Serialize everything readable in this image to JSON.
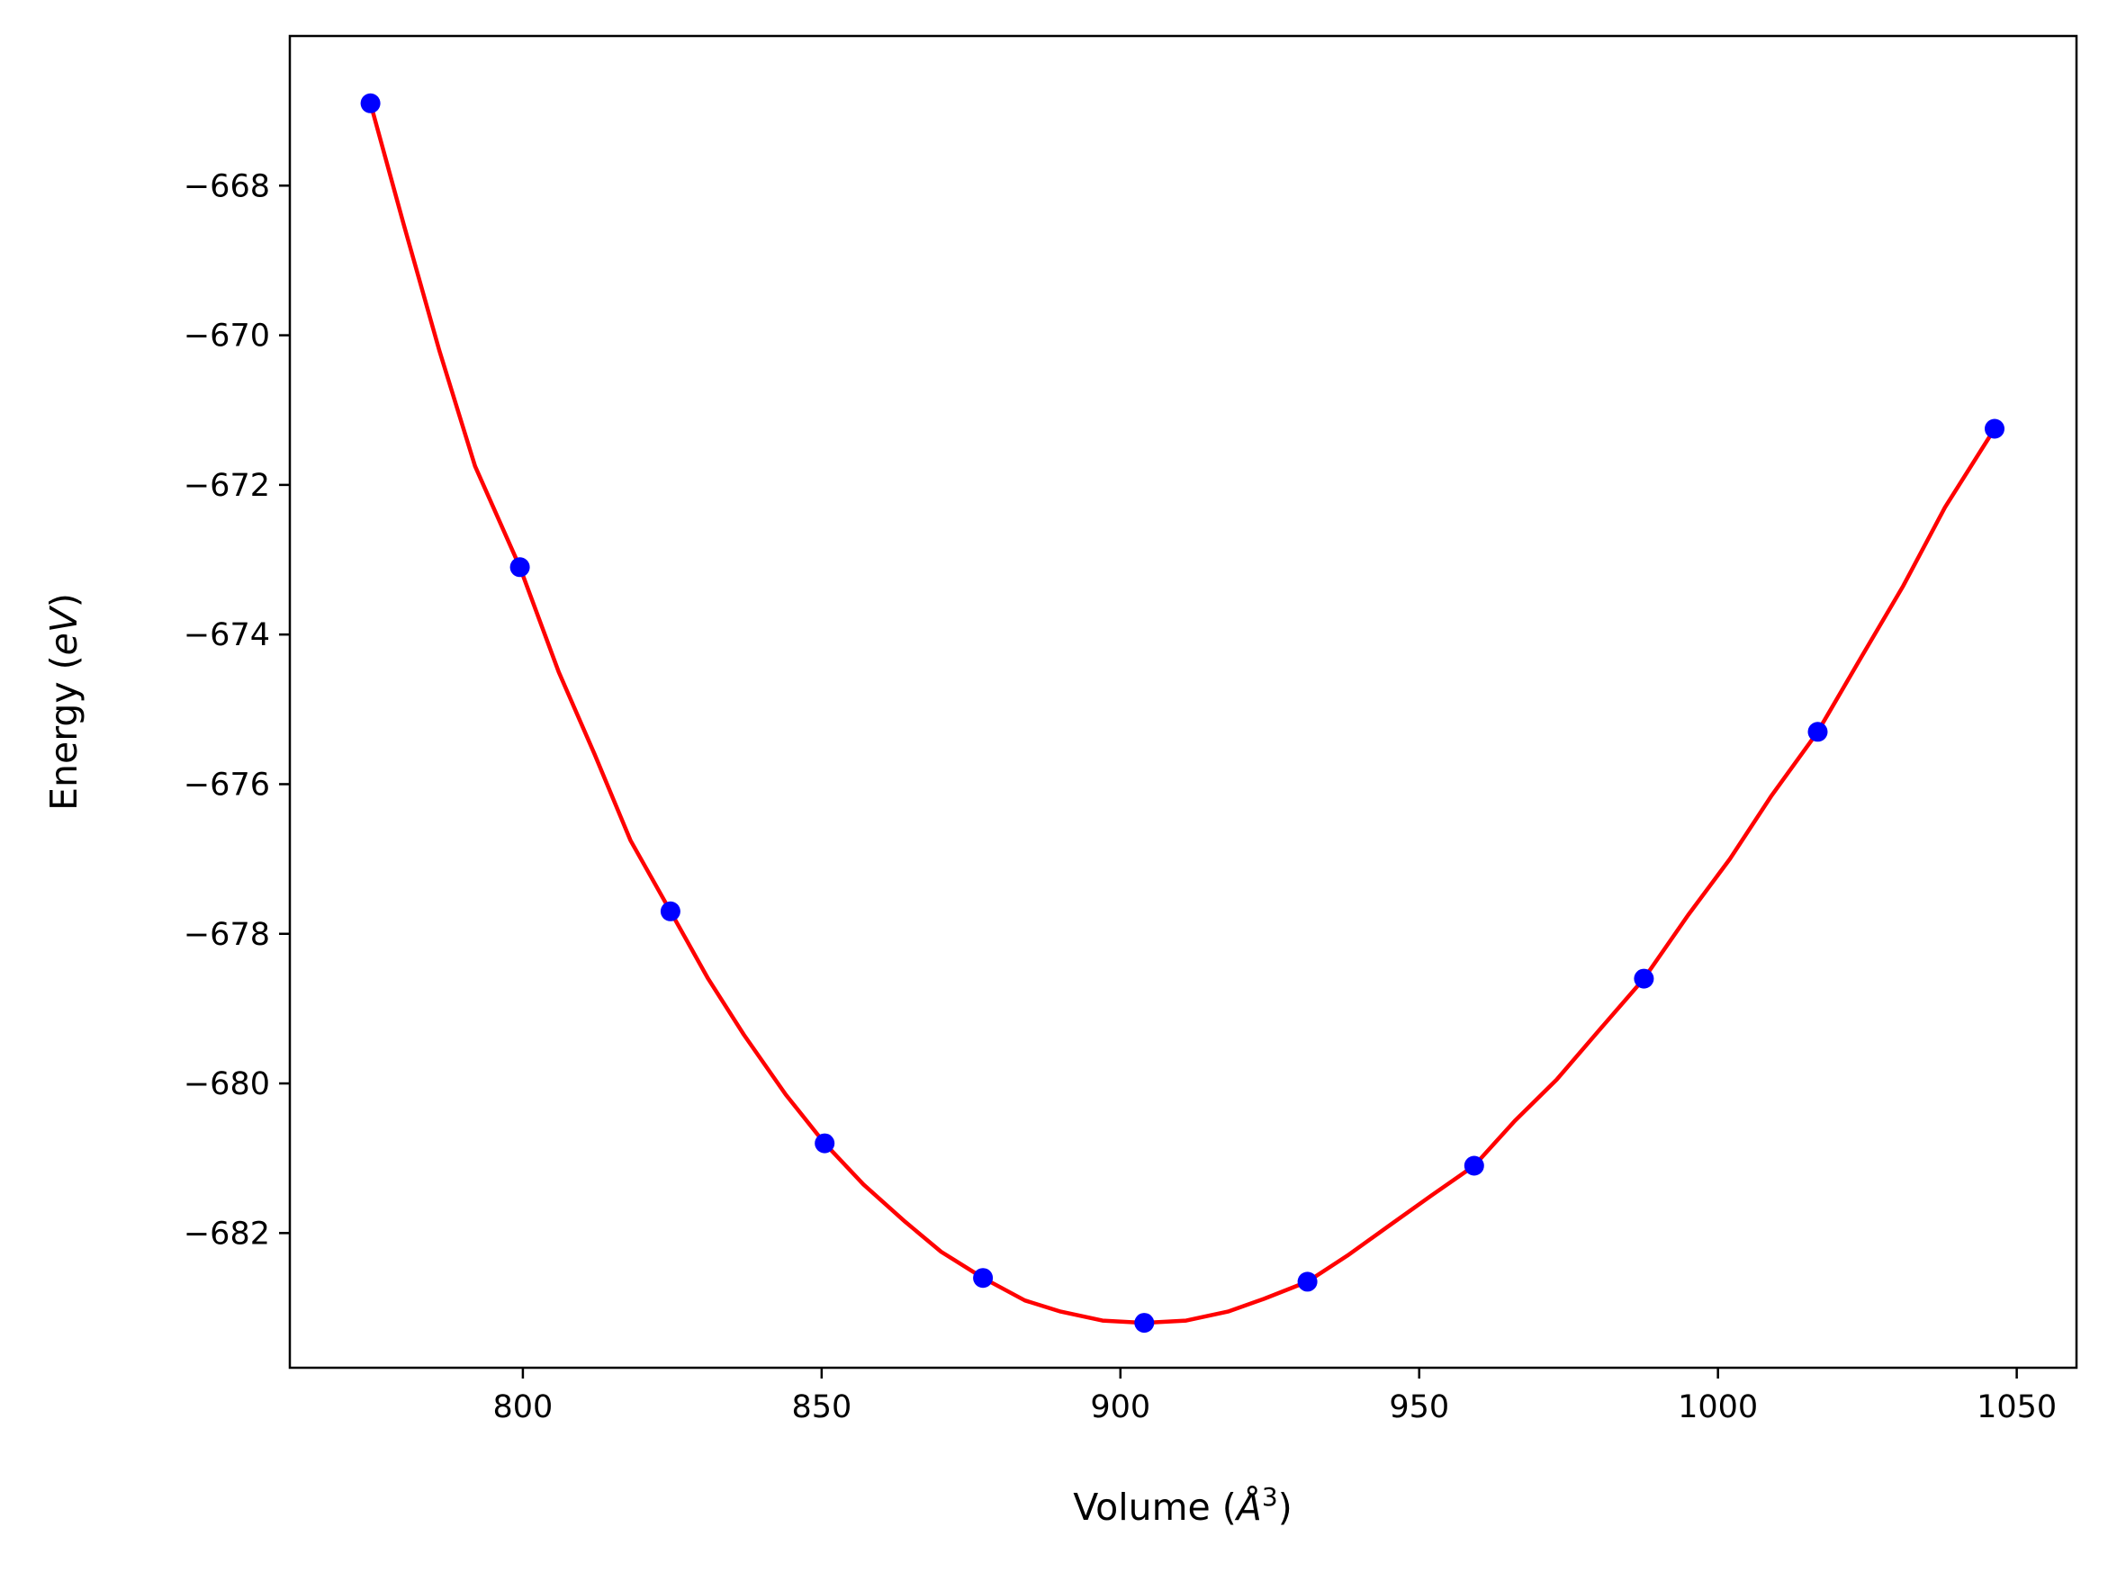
{
  "chart_data": {
    "type": "scatter",
    "xlabel": "Volume (Å³)",
    "xlabel_parts": {
      "prefix": "Volume (",
      "symbol": "Å",
      "sup": "3",
      "suffix": ")"
    },
    "ylabel": "Energy (eV)",
    "ylabel_parts": {
      "prefix": "Energy (",
      "unit": "eV",
      "suffix": ")"
    },
    "xlim": [
      761,
      1060
    ],
    "ylim": [
      -683.8,
      -666.0
    ],
    "xticks": [
      800,
      850,
      900,
      950,
      1000,
      1050
    ],
    "yticks": [
      -668,
      -670,
      -672,
      -674,
      -676,
      -678,
      -680,
      -682
    ],
    "xtick_labels": [
      "800",
      "850",
      "900",
      "950",
      "1000",
      "1050"
    ],
    "ytick_labels": [
      "−668",
      "−670",
      "−672",
      "−674",
      "−676",
      "−678",
      "−680",
      "−682"
    ],
    "grid": false,
    "series": [
      {
        "kind": "points",
        "color": "#0000ff",
        "x": [
          774.5,
          799.5,
          824.7,
          850.5,
          877.0,
          904.0,
          931.3,
          959.2,
          987.6,
          1016.7,
          1046.3
        ],
        "y": [
          -666.9,
          -673.1,
          -677.7,
          -680.8,
          -682.6,
          -683.2,
          -682.65,
          -681.1,
          -678.6,
          -675.3,
          -671.25
        ]
      },
      {
        "kind": "fit-curve",
        "color": "#ff0000",
        "x": [
          774.5,
          780,
          786,
          792,
          799.5,
          806,
          812,
          818,
          824.7,
          831,
          837,
          844,
          850.5,
          857,
          864,
          870,
          877.0,
          884,
          890,
          897,
          904.0,
          911,
          918,
          924,
          931.3,
          938,
          945,
          952,
          959.2,
          966,
          973,
          980,
          987.6,
          995,
          1002,
          1009,
          1016.7,
          1024,
          1031,
          1038,
          1046.3
        ],
        "y": [
          -666.9,
          -668.5,
          -670.2,
          -671.75,
          -673.1,
          -674.5,
          -675.6,
          -676.75,
          -677.7,
          -678.6,
          -679.35,
          -680.15,
          -680.8,
          -681.35,
          -681.85,
          -682.25,
          -682.6,
          -682.9,
          -683.05,
          -683.17,
          -683.2,
          -683.17,
          -683.05,
          -682.88,
          -682.65,
          -682.3,
          -681.9,
          -681.5,
          -681.1,
          -680.5,
          -679.95,
          -679.3,
          -678.6,
          -677.75,
          -677.0,
          -676.15,
          -675.3,
          -674.3,
          -673.35,
          -672.3,
          -671.25
        ]
      }
    ]
  }
}
